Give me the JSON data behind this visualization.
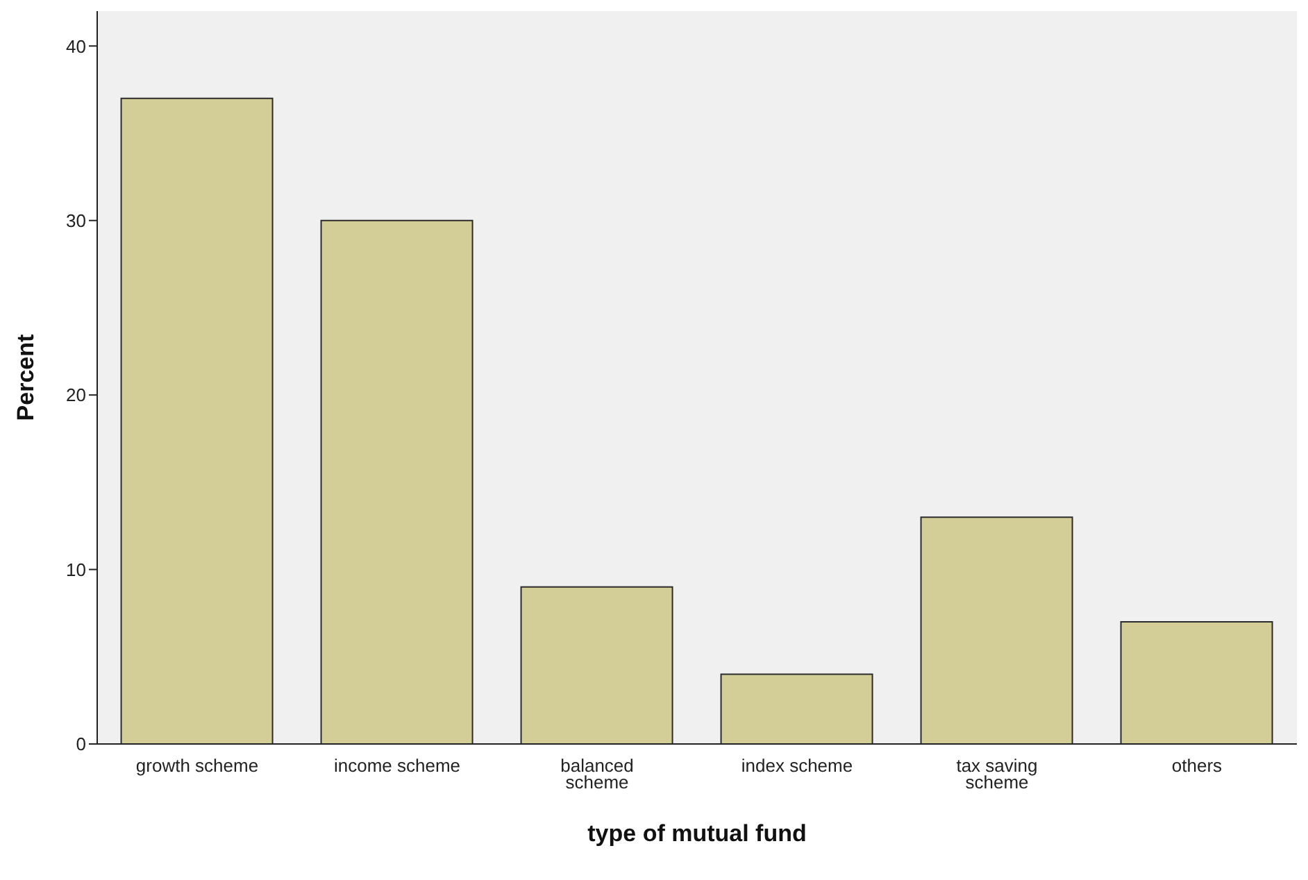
{
  "chart_data": {
    "type": "bar",
    "xlabel": "type of mutual fund",
    "ylabel": "Percent",
    "categories": [
      "growth scheme",
      "income scheme",
      "balanced scheme",
      "index scheme",
      "tax saving scheme",
      "others"
    ],
    "values": [
      37,
      30,
      9,
      4,
      13,
      7
    ],
    "color": "#d3ce97",
    "ylim": [
      0,
      42
    ],
    "yticks": [
      0,
      10,
      20,
      30,
      40
    ]
  }
}
